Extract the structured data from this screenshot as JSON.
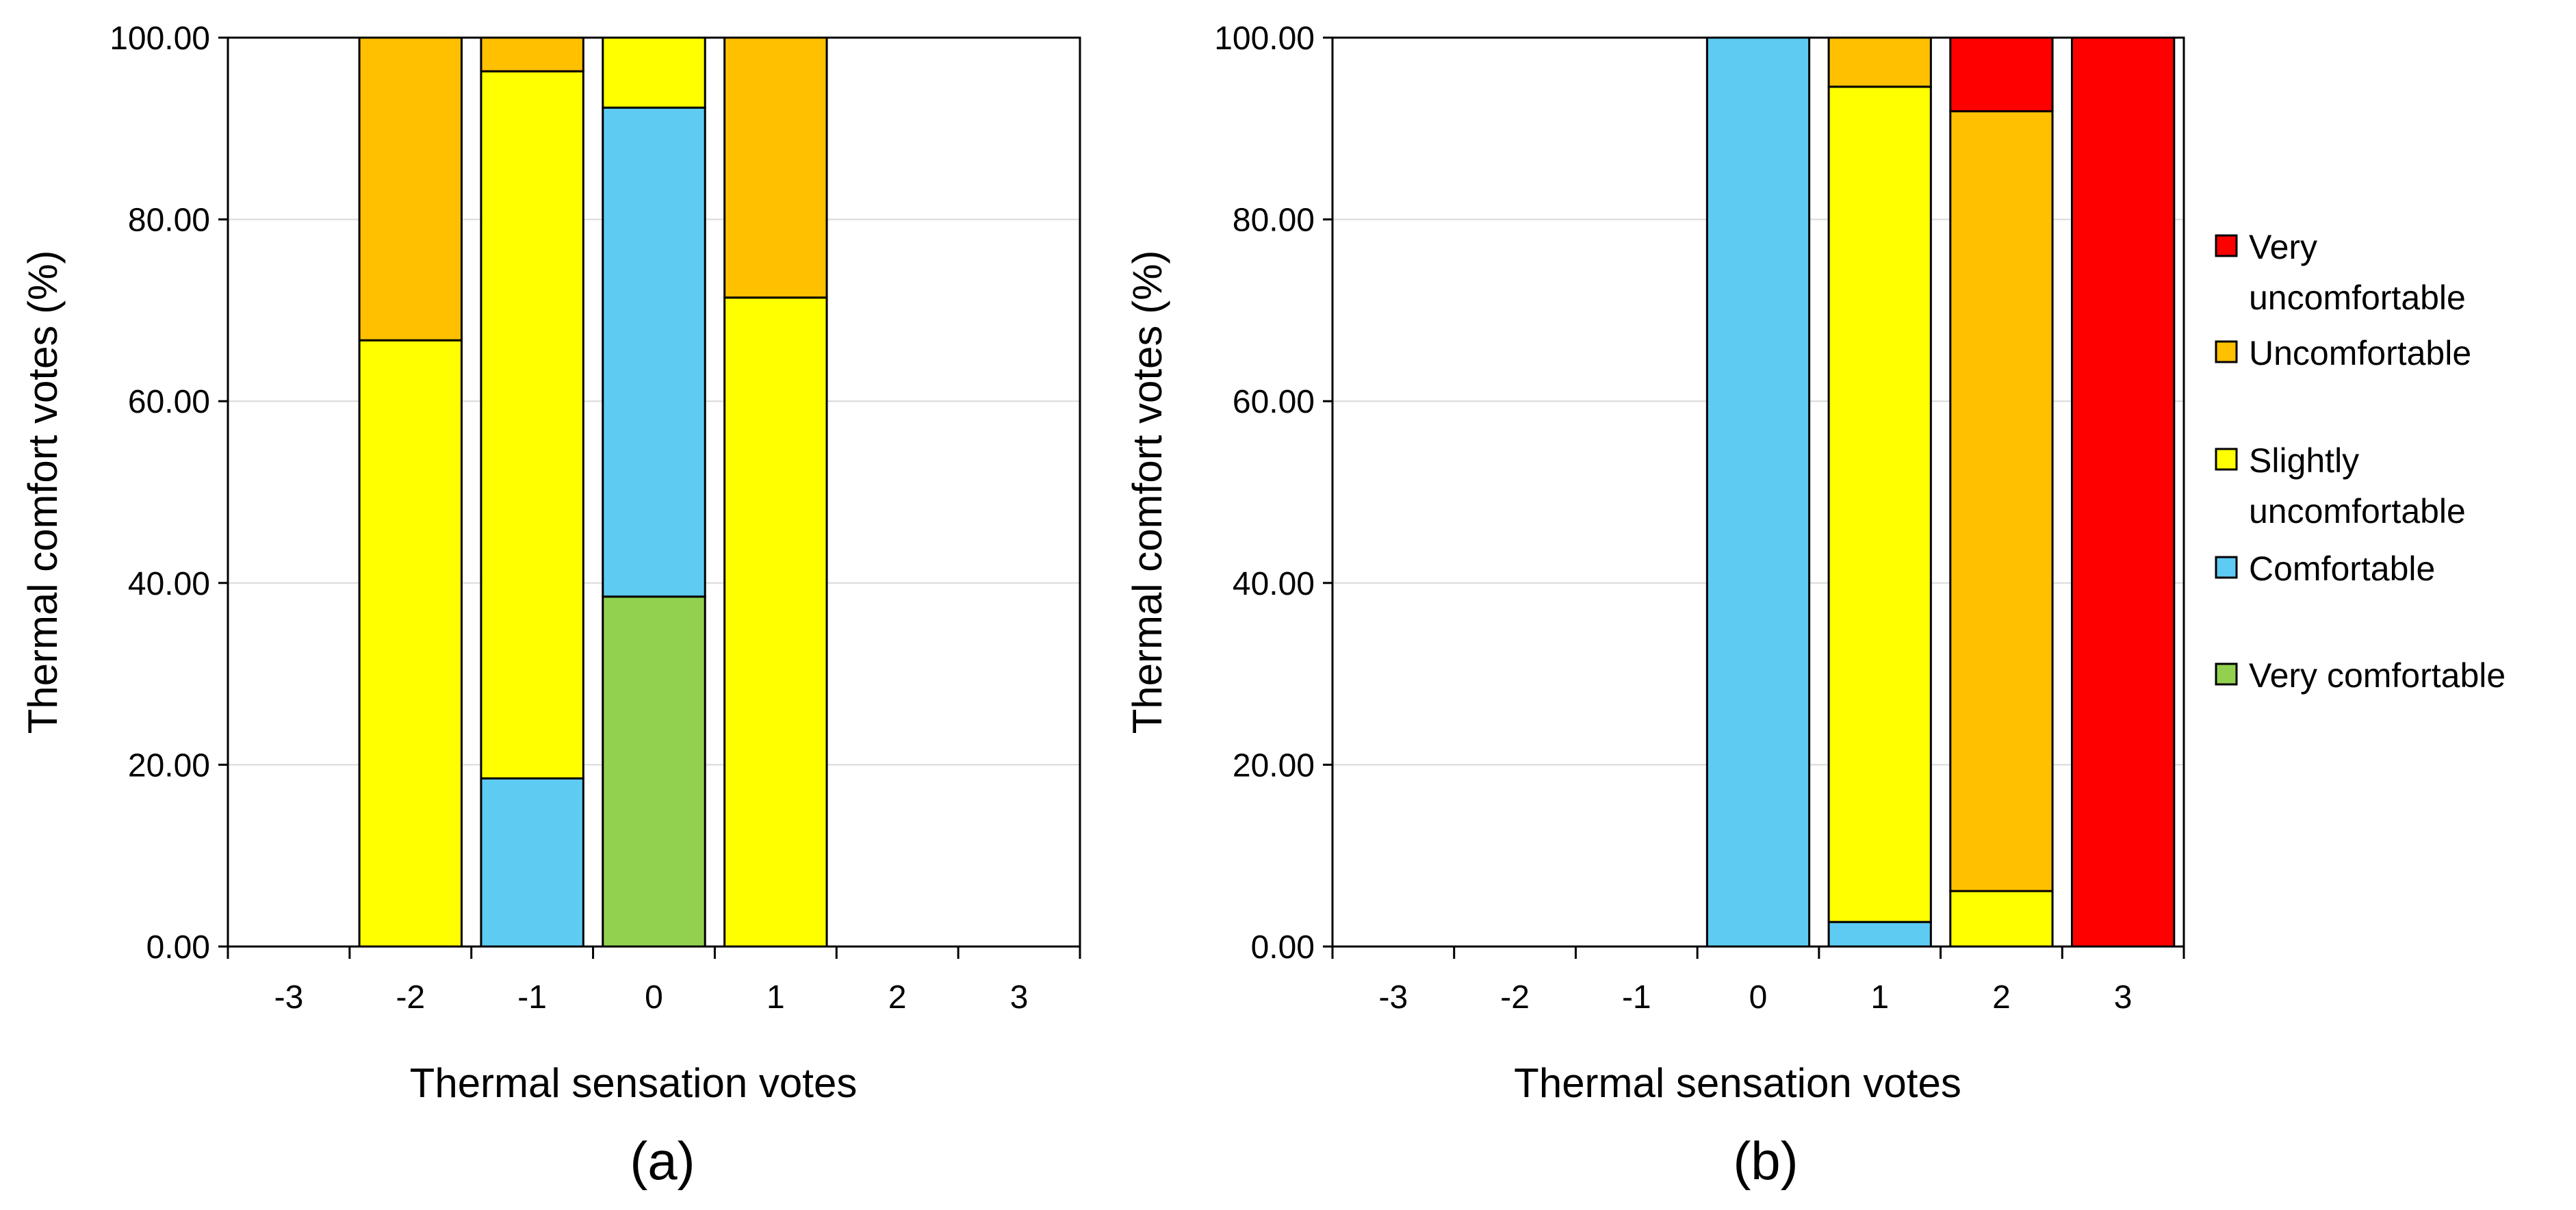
{
  "colors": {
    "Very comfortable": "#92d050",
    "Comfortable": "#5ecbf3",
    "Slightly uncomfortable": "#ffff00",
    "Uncomfortable": "#ffc000",
    "Very uncomfortable": "#ff0000",
    "grid": "#d9d9d9",
    "axis": "#000000"
  },
  "legend": {
    "items": [
      {
        "key": "Very uncomfortable",
        "lines": [
          "Very",
          "uncomfortable"
        ]
      },
      {
        "key": "Uncomfortable",
        "lines": [
          "Uncomfortable"
        ]
      },
      {
        "key": "Slightly uncomfortable",
        "lines": [
          "Slightly",
          "uncomfortable"
        ]
      },
      {
        "key": "Comfortable",
        "lines": [
          "Comfortable"
        ]
      },
      {
        "key": "Very comfortable",
        "lines": [
          "Very comfortable"
        ]
      }
    ]
  },
  "chart_data": [
    {
      "type": "bar",
      "stacked": true,
      "panel_label": "(a)",
      "xlabel": "Thermal sensation votes",
      "ylabel": "Thermal comfort votes (%)",
      "ylim": [
        0,
        100
      ],
      "yticks": [
        "0.00",
        "20.00",
        "40.00",
        "60.00",
        "80.00",
        "100.00"
      ],
      "categories": [
        "-3",
        "-2",
        "-1",
        "0",
        "1",
        "2",
        "3"
      ],
      "series": [
        {
          "name": "Very comfortable",
          "values": [
            0,
            0,
            0,
            38.5,
            0,
            0,
            0
          ]
        },
        {
          "name": "Comfortable",
          "values": [
            0,
            0,
            18.5,
            53.8,
            0,
            0,
            0
          ]
        },
        {
          "name": "Slightly uncomfortable",
          "values": [
            0,
            66.7,
            77.8,
            7.7,
            71.4,
            0,
            0
          ]
        },
        {
          "name": "Uncomfortable",
          "values": [
            0,
            33.3,
            3.7,
            0,
            28.6,
            0,
            0
          ]
        },
        {
          "name": "Very uncomfortable",
          "values": [
            0,
            0,
            0,
            0,
            0,
            0,
            0
          ]
        }
      ]
    },
    {
      "type": "bar",
      "stacked": true,
      "panel_label": "(b)",
      "xlabel": "Thermal sensation votes",
      "ylabel": "Thermal comfort votes (%)",
      "ylim": [
        0,
        100
      ],
      "yticks": [
        "0.00",
        "20.00",
        "40.00",
        "60.00",
        "80.00",
        "100.00"
      ],
      "categories": [
        "-3",
        "-2",
        "-1",
        "0",
        "1",
        "2",
        "3"
      ],
      "series": [
        {
          "name": "Very comfortable",
          "values": [
            0,
            0,
            0,
            0,
            0,
            0,
            0
          ]
        },
        {
          "name": "Comfortable",
          "values": [
            0,
            0,
            0,
            100,
            2.7,
            0,
            0
          ]
        },
        {
          "name": "Slightly uncomfortable",
          "values": [
            0,
            0,
            0,
            0,
            91.9,
            6.1,
            0
          ]
        },
        {
          "name": "Uncomfortable",
          "values": [
            0,
            0,
            0,
            0,
            5.4,
            85.8,
            0
          ]
        },
        {
          "name": "Very uncomfortable",
          "values": [
            0,
            0,
            0,
            0,
            0,
            8.1,
            100
          ]
        }
      ]
    }
  ]
}
